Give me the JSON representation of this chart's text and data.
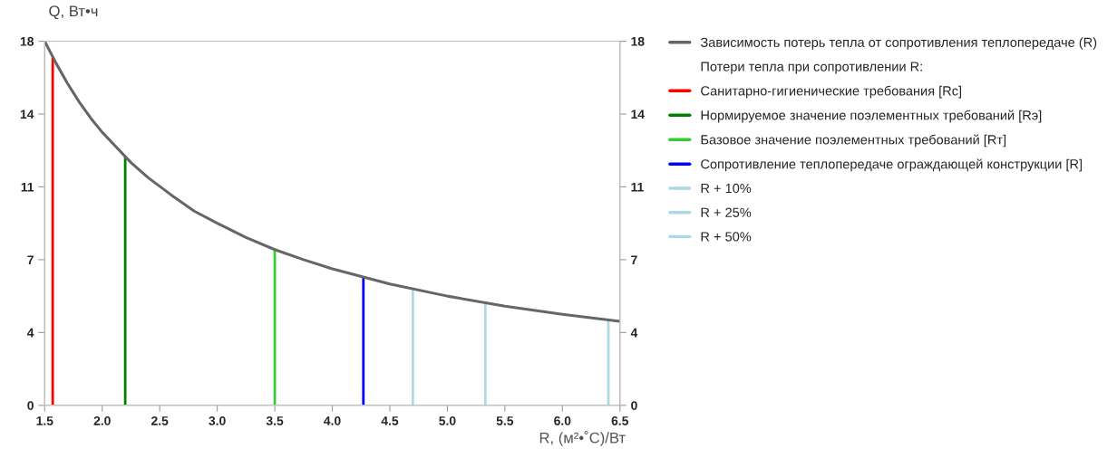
{
  "chart_data": {
    "type": "line",
    "xlabel": "R, (м²•˚С)/Вт",
    "ylabel": "Q, Вт•ч",
    "xlim": [
      1.5,
      6.5
    ],
    "xticks": [
      {
        "value": 1.5,
        "label": "1.5"
      },
      {
        "value": 2,
        "label": "2.0"
      },
      {
        "value": 2.5,
        "label": "2.5"
      },
      {
        "value": 3,
        "label": "3.0"
      },
      {
        "value": 3.5,
        "label": "3.5"
      },
      {
        "value": 4,
        "label": "4.0"
      },
      {
        "value": 4.5,
        "label": "4.5"
      },
      {
        "value": 5,
        "label": "5.0"
      },
      {
        "value": 5.5,
        "label": "5.5"
      },
      {
        "value": 6,
        "label": "6.0"
      },
      {
        "value": 6.5,
        "label": "6.5"
      }
    ],
    "ylim": [
      0,
      18
    ],
    "yticks": [
      0,
      {
        "value": 3.6,
        "label": "4"
      },
      {
        "value": 7.2,
        "label": "7"
      },
      {
        "value": 10.8,
        "label": "11"
      },
      {
        "value": 14.4,
        "label": "14"
      },
      18
    ],
    "y2lim": [
      0,
      18
    ],
    "y2ticks": [
      0,
      {
        "value": 3.6,
        "label": "4"
      },
      {
        "value": 7.2,
        "label": "7"
      },
      {
        "value": 10.8,
        "label": "11"
      },
      {
        "value": 14.4,
        "label": "14"
      },
      18
    ],
    "annotations": [
      "Потери тепла при сопротивлении R:"
    ],
    "legend": "right",
    "grid": false,
    "marker": "none",
    "line_style": "solid",
    "series": [
      {
        "name": "Зависимость потерь тепла от сопротивления теплопередаче (R)",
        "color": "#666666",
        "x": [
          1.5,
          1.6,
          1.7,
          1.8,
          1.9,
          2.0,
          2.1,
          2.25,
          2.4,
          2.6,
          2.8,
          3.0,
          3.25,
          3.5,
          3.75,
          4.0,
          4.5,
          5.0,
          5.5,
          6.0,
          6.5
        ],
        "values": [
          18,
          16.9,
          15.9,
          15,
          14.2,
          13.5,
          12.9,
          12,
          11.25,
          10.4,
          9.6,
          9,
          8.3,
          7.7,
          7.2,
          6.75,
          6,
          5.4,
          4.9,
          4.5,
          4.15
        ]
      },
      {
        "name": "Санитарно-гигиенические требования [Rc]",
        "color": "#ff0000",
        "x": [
          1.57,
          1.57
        ],
        "values": [
          0,
          17.2
        ]
      },
      {
        "name": "Нормируемое значение поэлементных требований [Rэ]",
        "color": "#008000",
        "x": [
          2.2,
          2.2
        ],
        "values": [
          0,
          12.3
        ]
      },
      {
        "name": "Базовое значение поэлементных требований [Rт]",
        "color": "#33cc33",
        "x": [
          3.5,
          3.5
        ],
        "values": [
          0,
          7.7
        ]
      },
      {
        "name": "Сопротивление теплопередаче ограждающей конструкции [R]",
        "color": "#0000ff",
        "x": [
          4.27,
          4.27
        ],
        "values": [
          0,
          6.3
        ]
      },
      {
        "name": "R + 10%",
        "color": "#add8e6",
        "x": [
          4.7,
          4.7
        ],
        "values": [
          0,
          5.7
        ]
      },
      {
        "name": "R + 25%",
        "color": "#add8e6",
        "x": [
          5.33,
          5.33
        ],
        "values": [
          0,
          5.1
        ]
      },
      {
        "name": "R + 50%",
        "color": "#add8e6",
        "x": [
          6.4,
          6.4
        ],
        "values": [
          0,
          4.2
        ]
      }
    ]
  }
}
